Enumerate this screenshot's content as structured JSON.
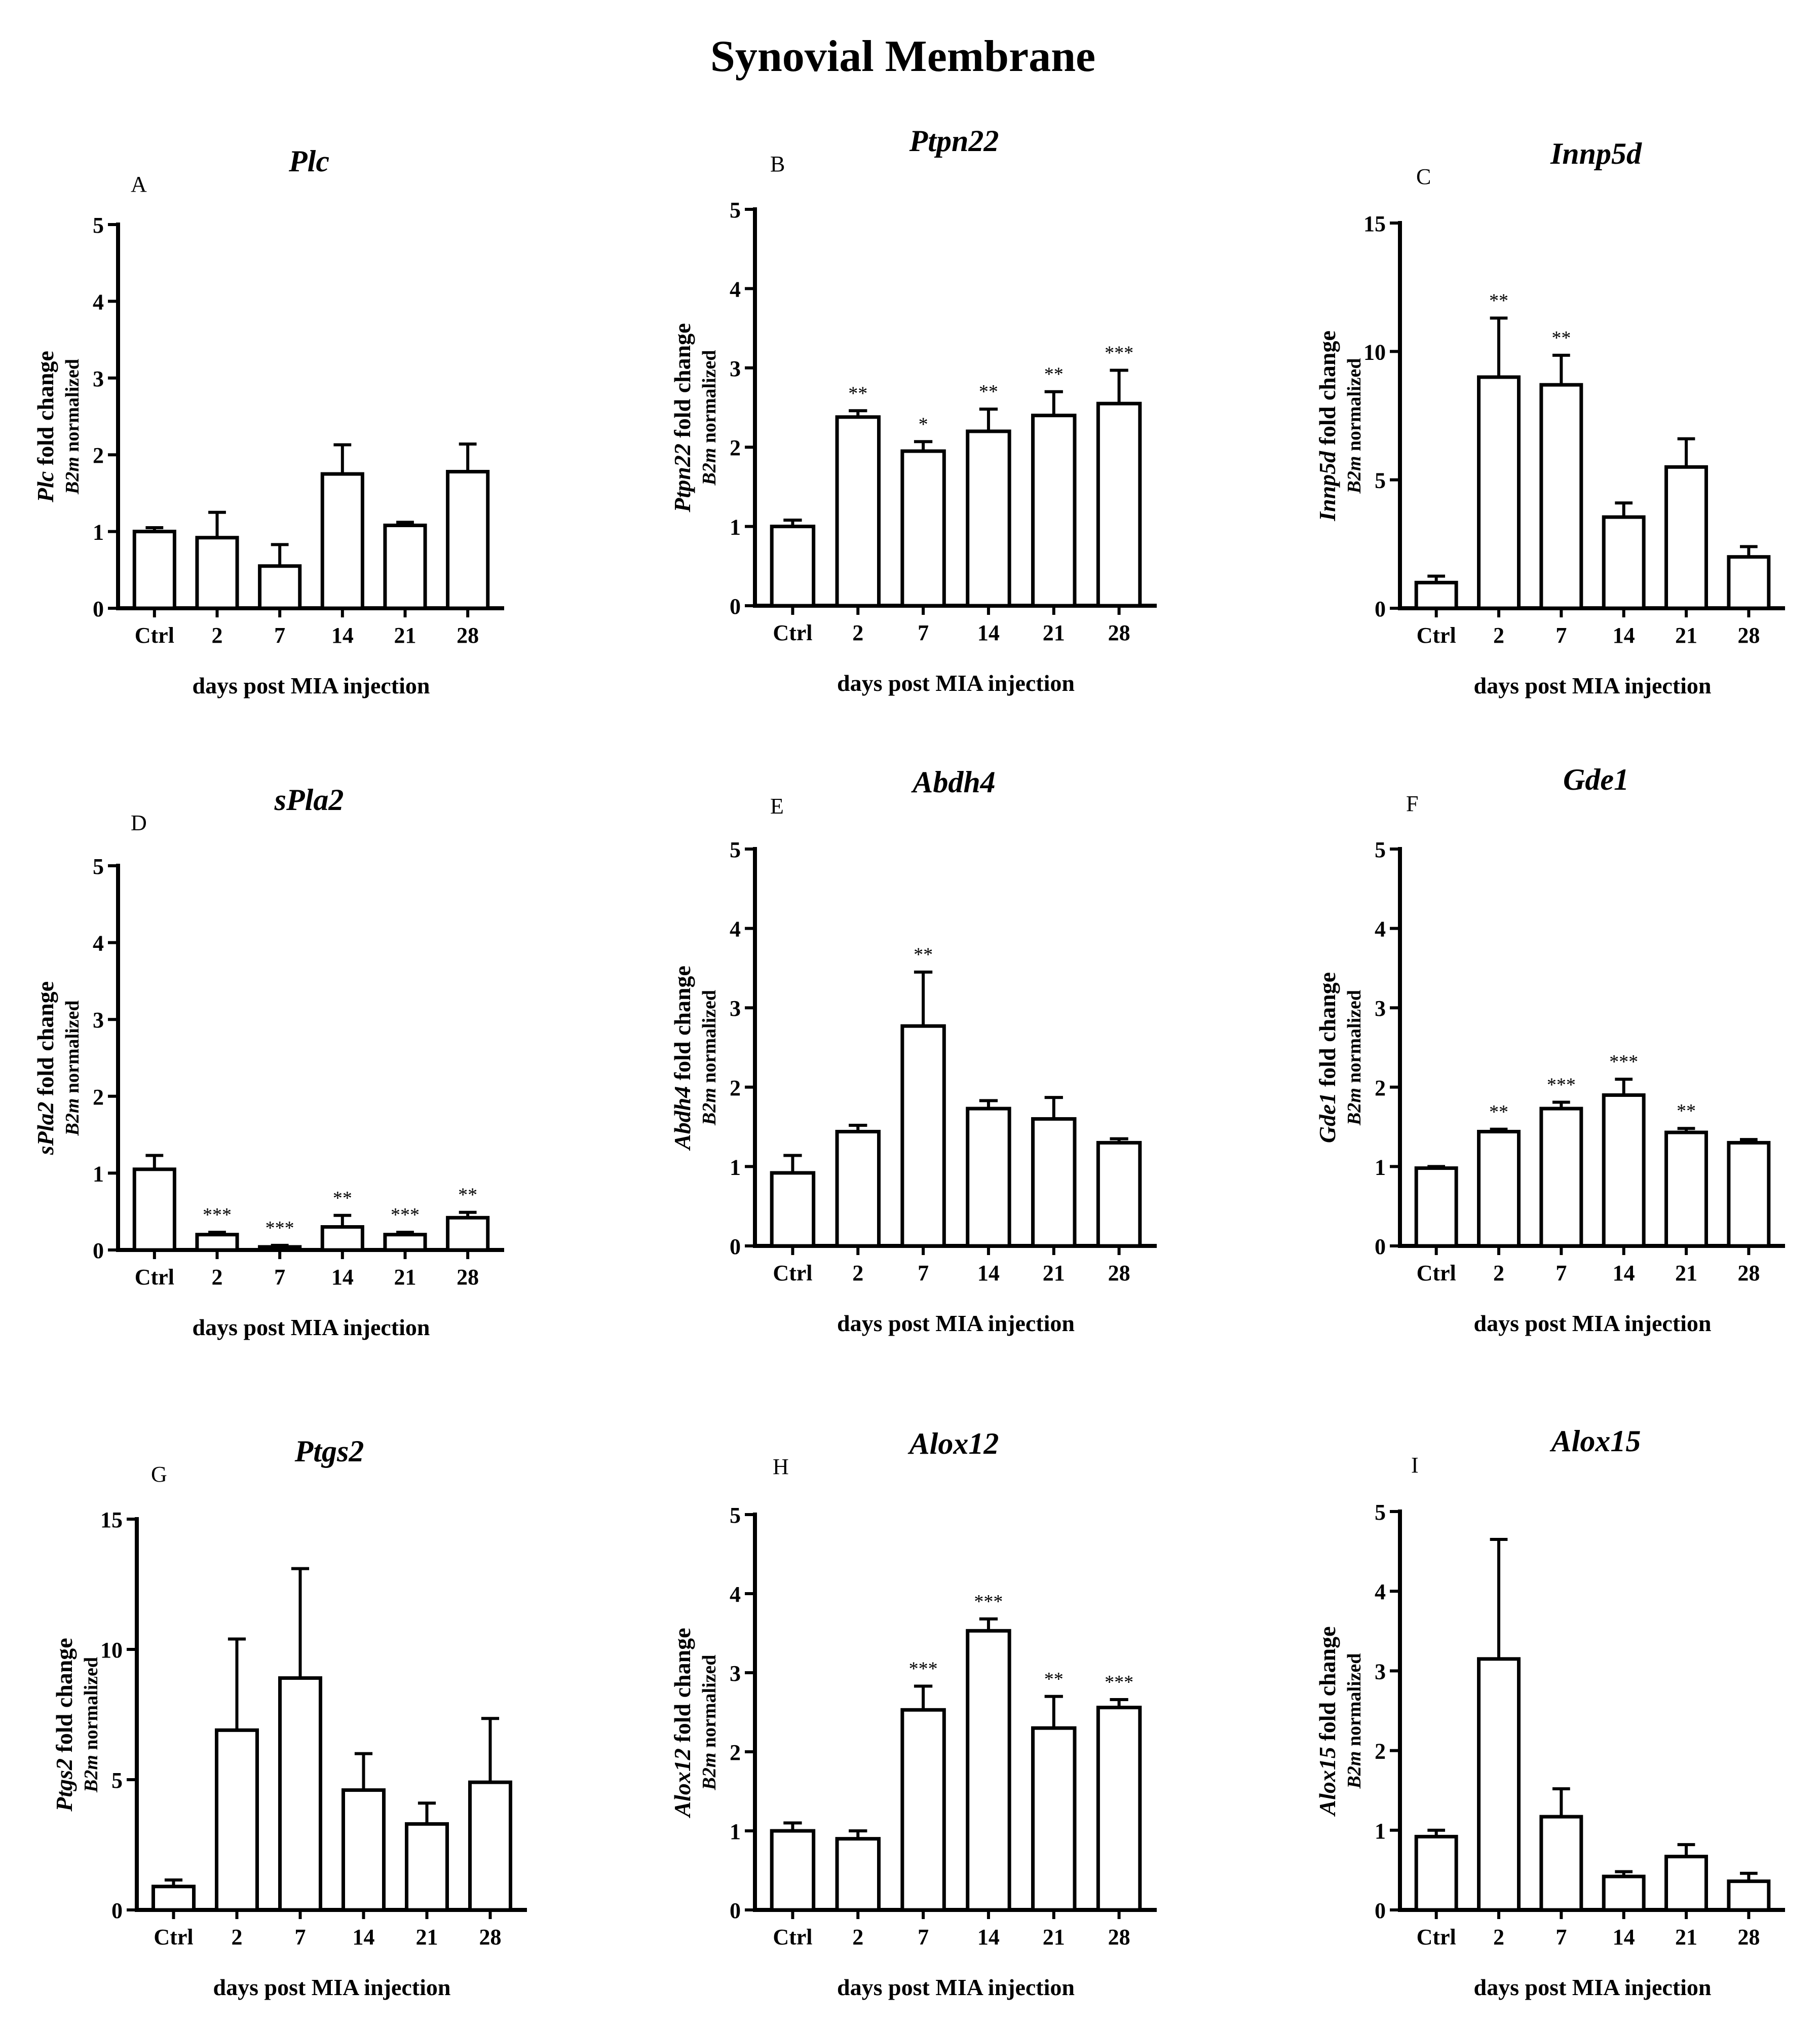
{
  "figure_title": "Synovial Membrane",
  "chart_data": [
    {
      "type": "bar",
      "panel": "A",
      "title": "Plc",
      "ylabel_gene": "Plc",
      "ylabel_suffix": "fold change",
      "ylabel_norm_gene": "B2m",
      "ylabel_norm_suffix": "normalized",
      "xlabel": "days post MIA injection",
      "categories": [
        "Ctrl",
        "2",
        "7",
        "14",
        "21",
        "28"
      ],
      "values": [
        1.0,
        0.92,
        0.55,
        1.75,
        1.08,
        1.78
      ],
      "errors": [
        0.05,
        0.33,
        0.28,
        0.38,
        0.04,
        0.36
      ],
      "significance": [
        "",
        "",
        "",
        "",
        "",
        ""
      ],
      "ylim": [
        0,
        5
      ],
      "yticks": [
        0,
        1,
        2,
        3,
        4,
        5
      ]
    },
    {
      "type": "bar",
      "panel": "B",
      "title": "Ptpn22",
      "ylabel_gene": "Ptpn22",
      "ylabel_suffix": "fold change",
      "ylabel_norm_gene": "B2m",
      "ylabel_norm_suffix": "normalized",
      "xlabel": "days post MIA injection",
      "categories": [
        "Ctrl",
        "2",
        "7",
        "14",
        "21",
        "28"
      ],
      "values": [
        1.0,
        2.38,
        1.95,
        2.2,
        2.4,
        2.55
      ],
      "errors": [
        0.08,
        0.08,
        0.12,
        0.28,
        0.3,
        0.42
      ],
      "significance": [
        "",
        "**",
        "*",
        "**",
        "**",
        "***"
      ],
      "ylim": [
        0,
        5
      ],
      "yticks": [
        0,
        1,
        2,
        3,
        4,
        5
      ]
    },
    {
      "type": "bar",
      "panel": "C",
      "title": "Innp5d",
      "ylabel_gene": "Innp5d",
      "ylabel_suffix": "fold change",
      "ylabel_norm_gene": "B2m",
      "ylabel_norm_suffix": "normalized",
      "xlabel": "days post MIA injection",
      "categories": [
        "Ctrl",
        "2",
        "7",
        "14",
        "21",
        "28"
      ],
      "values": [
        1.0,
        9.0,
        8.7,
        3.55,
        5.5,
        2.0
      ],
      "errors": [
        0.25,
        2.3,
        1.15,
        0.55,
        1.1,
        0.4
      ],
      "significance": [
        "",
        "**",
        "**",
        "",
        "",
        ""
      ],
      "ylim": [
        0,
        15
      ],
      "yticks": [
        0,
        5,
        10,
        15
      ]
    },
    {
      "type": "bar",
      "panel": "D",
      "title": "sPla2",
      "ylabel_gene": "sPla2",
      "ylabel_suffix": "fold change",
      "ylabel_norm_gene": "B2m",
      "ylabel_norm_suffix": "normalized",
      "xlabel": "days post MIA injection",
      "categories": [
        "Ctrl",
        "2",
        "7",
        "14",
        "21",
        "28"
      ],
      "values": [
        1.05,
        0.2,
        0.04,
        0.3,
        0.2,
        0.42
      ],
      "errors": [
        0.18,
        0.03,
        0.02,
        0.15,
        0.03,
        0.07
      ],
      "significance": [
        "",
        "***",
        "***",
        "**",
        "***",
        "**"
      ],
      "ylim": [
        0,
        5
      ],
      "yticks": [
        0,
        1,
        2,
        3,
        4,
        5
      ]
    },
    {
      "type": "bar",
      "panel": "E",
      "title": "Abdh4",
      "ylabel_gene": "Abdh4",
      "ylabel_suffix": "fold change",
      "ylabel_norm_gene": "B2m",
      "ylabel_norm_suffix": "normalized",
      "xlabel": "days post MIA injection",
      "categories": [
        "Ctrl",
        "2",
        "7",
        "14",
        "21",
        "28"
      ],
      "values": [
        0.92,
        1.44,
        2.77,
        1.73,
        1.6,
        1.3
      ],
      "errors": [
        0.22,
        0.08,
        0.68,
        0.1,
        0.27,
        0.05
      ],
      "significance": [
        "",
        "",
        "**",
        "",
        "",
        ""
      ],
      "ylim": [
        0,
        5
      ],
      "yticks": [
        0,
        1,
        2,
        3,
        4,
        5
      ]
    },
    {
      "type": "bar",
      "panel": "F",
      "title": "Gde1",
      "ylabel_gene": "Gde1",
      "ylabel_suffix": "fold change",
      "ylabel_norm_gene": "B2m",
      "ylabel_norm_suffix": "normalized",
      "xlabel": "days post MIA injection",
      "categories": [
        "Ctrl",
        "2",
        "7",
        "14",
        "21",
        "28"
      ],
      "values": [
        0.98,
        1.44,
        1.73,
        1.9,
        1.43,
        1.3
      ],
      "errors": [
        0.02,
        0.03,
        0.08,
        0.2,
        0.05,
        0.04
      ],
      "significance": [
        "",
        "**",
        "***",
        "***",
        "**",
        ""
      ],
      "ylim": [
        0,
        5
      ],
      "yticks": [
        0,
        1,
        2,
        3,
        4,
        5
      ]
    },
    {
      "type": "bar",
      "panel": "G",
      "title": "Ptgs2",
      "ylabel_gene": "Ptgs2",
      "ylabel_suffix": "fold change",
      "ylabel_norm_gene": "B2m",
      "ylabel_norm_suffix": "normalized",
      "xlabel": "days post MIA injection",
      "categories": [
        "Ctrl",
        "2",
        "7",
        "14",
        "21",
        "28"
      ],
      "values": [
        0.9,
        6.9,
        8.9,
        4.6,
        3.3,
        4.9
      ],
      "errors": [
        0.25,
        3.5,
        4.2,
        1.4,
        0.8,
        2.45
      ],
      "significance": [
        "",
        "",
        "",
        "",
        "",
        ""
      ],
      "ylim": [
        0,
        15
      ],
      "yticks": [
        0,
        5,
        10,
        15
      ]
    },
    {
      "type": "bar",
      "panel": "H",
      "title": "Alox12",
      "ylabel_gene": "Alox12",
      "ylabel_suffix": "fold change",
      "ylabel_norm_gene": "B2m",
      "ylabel_norm_suffix": "normalized",
      "xlabel": "days post MIA injection",
      "categories": [
        "Ctrl",
        "2",
        "7",
        "14",
        "21",
        "28"
      ],
      "values": [
        1.0,
        0.9,
        2.53,
        3.53,
        2.3,
        2.56
      ],
      "errors": [
        0.1,
        0.1,
        0.3,
        0.15,
        0.4,
        0.1
      ],
      "significance": [
        "",
        "",
        "***",
        "***",
        "**",
        "***"
      ],
      "ylim": [
        0,
        5
      ],
      "yticks": [
        0,
        1,
        2,
        3,
        4,
        5
      ]
    },
    {
      "type": "bar",
      "panel": "I",
      "title": "Alox15",
      "ylabel_gene": "Alox15",
      "ylabel_suffix": "fold change",
      "ylabel_norm_gene": "B2m",
      "ylabel_norm_suffix": "normalized",
      "xlabel": "days post MIA injection",
      "categories": [
        "Ctrl",
        "2",
        "7",
        "14",
        "21",
        "28"
      ],
      "values": [
        0.92,
        3.15,
        1.17,
        0.42,
        0.67,
        0.36
      ],
      "errors": [
        0.08,
        1.5,
        0.35,
        0.06,
        0.15,
        0.1
      ],
      "significance": [
        "",
        "",
        "",
        "",
        "",
        ""
      ],
      "ylim": [
        0,
        5
      ],
      "yticks": [
        0,
        1,
        2,
        3,
        4,
        5
      ]
    }
  ]
}
